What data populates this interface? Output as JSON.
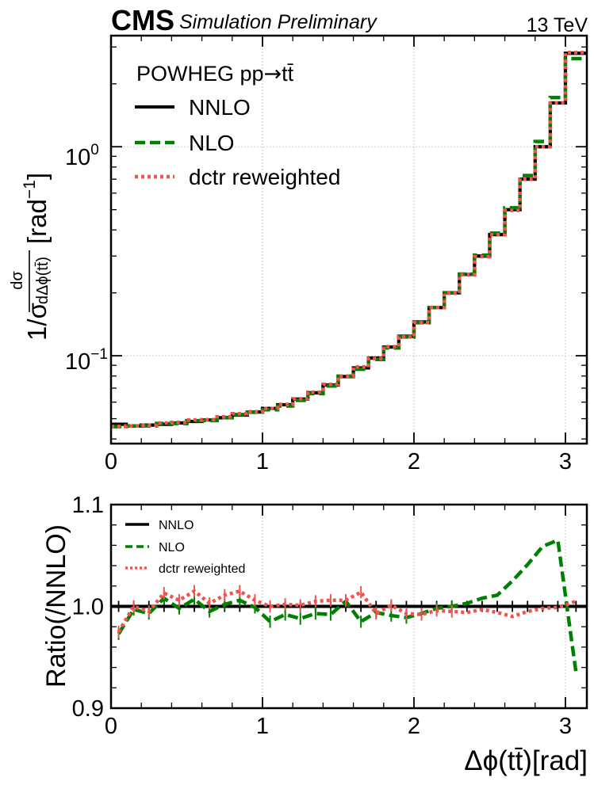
{
  "header": {
    "experiment": "CMS",
    "status": "Simulation Preliminary",
    "energy": "13 TeV"
  },
  "colors": {
    "NNLO": "#000000",
    "NLO": "#008000",
    "dctr": "#f0544f",
    "grid": "#cccccc"
  },
  "chart_data": [
    {
      "type": "line",
      "panel": "main",
      "step": "histogram",
      "yscale": "log",
      "ylabel": "1/σ dσ/dΔϕ(tt̄) [rad⁻¹]",
      "ylabel_parts": {
        "prefix": "1/σ",
        "num": "dσ",
        "den": "dΔϕ(tt̄)",
        "unit": "[rad",
        "unit_exp": "−1",
        "unit_close": "]"
      },
      "xlim": [
        0,
        3.1416
      ],
      "ylim": [
        0.038,
        3.4
      ],
      "xticks": [
        0,
        1,
        2,
        3
      ],
      "xtick_labels": [
        "0",
        "1",
        "2",
        "3"
      ],
      "yticks": [
        0.1,
        1.0
      ],
      "ytick_labels": [
        {
          "base": "10",
          "exp": "−1"
        },
        {
          "base": "10",
          "exp": "0"
        }
      ],
      "grid": true,
      "legend_title": "POWHEG pp→tt̄",
      "legend_title_parts": {
        "a": "POWHEG pp",
        "arrow": "→",
        "b": "tt̄"
      },
      "legend_location": "top-left",
      "bin_edges": [
        0,
        0.1,
        0.2,
        0.3,
        0.4,
        0.5,
        0.6,
        0.7,
        0.8,
        0.9,
        1.0,
        1.1,
        1.2,
        1.3,
        1.4,
        1.5,
        1.6,
        1.7,
        1.8,
        1.9,
        2.0,
        2.1,
        2.2,
        2.3,
        2.4,
        2.5,
        2.6,
        2.7,
        2.8,
        2.9,
        3.0,
        3.1416
      ],
      "series": [
        {
          "name": "NNLO",
          "style": "solid",
          "values": [
            0.047,
            0.0462,
            0.0466,
            0.047,
            0.0477,
            0.0485,
            0.0493,
            0.0505,
            0.052,
            0.0538,
            0.056,
            0.0583,
            0.062,
            0.0665,
            0.0725,
            0.0795,
            0.0875,
            0.0975,
            0.11,
            0.124,
            0.145,
            0.17,
            0.2,
            0.245,
            0.3,
            0.38,
            0.5,
            0.7,
            1.0,
            1.62,
            2.8
          ]
        },
        {
          "name": "NLO",
          "style": "dashed",
          "values": [
            0.0458,
            0.0461,
            0.0462,
            0.0474,
            0.0474,
            0.0489,
            0.049,
            0.0506,
            0.0523,
            0.0537,
            0.0552,
            0.0575,
            0.0612,
            0.0659,
            0.0717,
            0.0799,
            0.0862,
            0.096,
            0.109,
            0.123,
            0.144,
            0.17,
            0.2,
            0.246,
            0.303,
            0.386,
            0.51,
            0.728,
            1.06,
            1.72,
            2.64
          ]
        },
        {
          "name": "dctr reweighted",
          "style": "dotted",
          "values": [
            0.0459,
            0.0462,
            0.0465,
            0.0477,
            0.048,
            0.0493,
            0.0495,
            0.051,
            0.0528,
            0.054,
            0.056,
            0.0585,
            0.0622,
            0.067,
            0.073,
            0.08,
            0.0885,
            0.097,
            0.1105,
            0.123,
            0.144,
            0.17,
            0.199,
            0.244,
            0.298,
            0.379,
            0.496,
            0.7,
            1.0,
            1.62,
            2.82
          ]
        }
      ]
    },
    {
      "type": "line",
      "panel": "ratio",
      "xlabel": "Δϕ(tt̄)[rad]",
      "xlabel_parts": {
        "a": "Δϕ(",
        "b": "tt̄",
        "c": ")[rad]"
      },
      "ylabel": "Ratio(/NNLO)",
      "xlim": [
        0,
        3.1416
      ],
      "ylim": [
        0.9,
        1.1
      ],
      "xticks": [
        0,
        1,
        2,
        3
      ],
      "xtick_labels": [
        "0",
        "1",
        "2",
        "3"
      ],
      "yticks": [
        0.9,
        1.0,
        1.1
      ],
      "ytick_labels": [
        "0.9",
        "1.0",
        "1.1"
      ],
      "grid": true,
      "legend_location": "top-left",
      "x": [
        0.05,
        0.15,
        0.25,
        0.35,
        0.45,
        0.55,
        0.65,
        0.75,
        0.85,
        0.95,
        1.05,
        1.15,
        1.25,
        1.35,
        1.45,
        1.55,
        1.65,
        1.75,
        1.85,
        1.95,
        2.05,
        2.15,
        2.25,
        2.35,
        2.45,
        2.55,
        2.65,
        2.75,
        2.85,
        2.95,
        3.07
      ],
      "series": [
        {
          "name": "NNLO",
          "style": "solid",
          "values": [
            1.0,
            1.0,
            1.0,
            1.0,
            1.0,
            1.0,
            1.0,
            1.0,
            1.0,
            1.0,
            1.0,
            1.0,
            1.0,
            1.0,
            1.0,
            1.0,
            1.0,
            1.0,
            1.0,
            1.0,
            1.0,
            1.0,
            1.0,
            1.0,
            1.0,
            1.0,
            1.0,
            1.0,
            1.0,
            1.0,
            1.0
          ]
        },
        {
          "name": "NLO",
          "style": "dashed",
          "error": 0.006,
          "values": [
            0.973,
            0.997,
            0.993,
            1.008,
            0.998,
            1.007,
            0.995,
            1.002,
            1.006,
            0.999,
            0.985,
            0.992,
            0.988,
            0.993,
            0.992,
            1.005,
            0.985,
            0.994,
            0.991,
            0.989,
            0.993,
            0.998,
            1.0,
            1.003,
            1.008,
            1.011,
            1.025,
            1.041,
            1.059,
            1.065,
            0.935
          ]
        },
        {
          "name": "dctr reweighted",
          "style": "dotted",
          "error": 0.006,
          "values": [
            0.975,
            1.0,
            0.995,
            1.013,
            1.006,
            1.015,
            1.003,
            1.011,
            1.015,
            1.006,
            1.0,
            1.002,
            1.001,
            1.005,
            1.006,
            1.006,
            1.014,
            0.993,
            1.001,
            0.993,
            0.992,
            0.996,
            0.995,
            0.994,
            0.997,
            0.994,
            0.99,
            0.995,
            0.998,
            0.999,
            1.005
          ]
        }
      ]
    }
  ]
}
